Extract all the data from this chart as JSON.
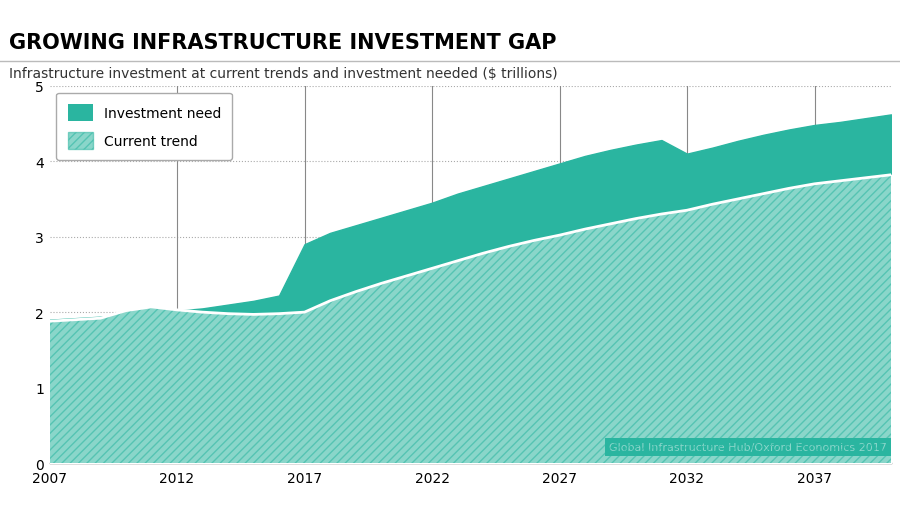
{
  "title": "GROWING INFRASTRUCTURE INVESTMENT GAP",
  "subtitle": "Infrastructure investment at current trends and investment needed ($ trillions)",
  "source": "Global Infrastructure Hub/Oxford Economics 2017",
  "teal": "#2ab5a0",
  "background": "#ffffff",
  "xlim": [
    2007,
    2040
  ],
  "ylim": [
    0,
    5
  ],
  "xticks": [
    2007,
    2012,
    2017,
    2022,
    2027,
    2032,
    2037
  ],
  "yticks": [
    0,
    1,
    2,
    3,
    4,
    5
  ],
  "vlines": [
    2012,
    2017,
    2022,
    2027,
    2032,
    2037
  ],
  "years": [
    2007,
    2008,
    2009,
    2010,
    2011,
    2012,
    2013,
    2014,
    2015,
    2016,
    2017,
    2018,
    2019,
    2020,
    2021,
    2022,
    2023,
    2024,
    2025,
    2026,
    2027,
    2028,
    2029,
    2030,
    2031,
    2032,
    2033,
    2034,
    2035,
    2036,
    2037,
    2038,
    2039,
    2040
  ],
  "investment_need": [
    1.9,
    1.92,
    1.94,
    1.97,
    2.0,
    2.02,
    2.05,
    2.1,
    2.15,
    2.22,
    2.9,
    3.05,
    3.15,
    3.25,
    3.35,
    3.45,
    3.57,
    3.67,
    3.77,
    3.87,
    3.97,
    4.07,
    4.15,
    4.22,
    4.28,
    4.1,
    4.18,
    4.27,
    4.35,
    4.42,
    4.48,
    4.52,
    4.57,
    4.62
  ],
  "current_trend": [
    1.88,
    1.9,
    1.92,
    2.02,
    2.07,
    2.03,
    2.0,
    1.98,
    1.97,
    1.98,
    2.0,
    2.15,
    2.27,
    2.38,
    2.48,
    2.58,
    2.68,
    2.78,
    2.87,
    2.95,
    3.02,
    3.1,
    3.17,
    3.24,
    3.3,
    3.35,
    3.43,
    3.5,
    3.57,
    3.64,
    3.7,
    3.74,
    3.78,
    3.82
  ],
  "title_fontsize": 15,
  "subtitle_fontsize": 10,
  "source_fontsize": 8,
  "tick_fontsize": 10
}
